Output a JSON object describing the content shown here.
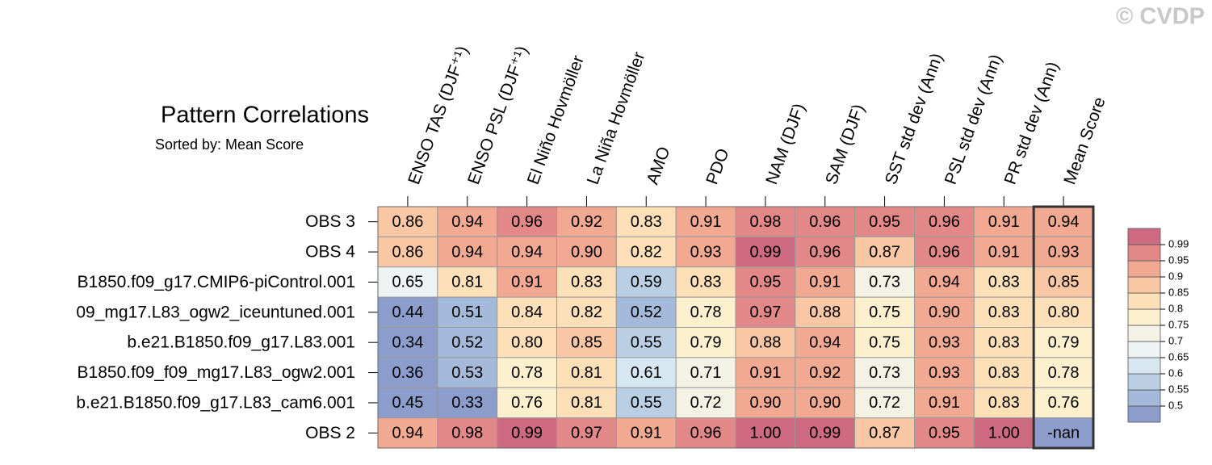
{
  "chart_data": {
    "type": "heatmap",
    "title": "Pattern Correlations",
    "subtitle": "Sorted by: Mean Score",
    "watermark": "© CVDP",
    "columns": [
      "ENSO TAS (DJF⁺¹)",
      "ENSO PSL (DJF⁺¹)",
      "El Niño Hovmöller",
      "La Niña Hovmöller",
      "AMO",
      "PDO",
      "NAM (DJF)",
      "SAM (DJF)",
      "SST std dev (Ann)",
      "PSL std dev (Ann)",
      "PR std dev (Ann)",
      "Mean Score"
    ],
    "rows": [
      "OBS 3",
      "OBS 4",
      "B1850.f09_g17.CMIP6-piControl.001",
      "09_mg17.L83_ogw2_iceuntuned.001",
      "b.e21.B1850.f09_g17.L83.001",
      "B1850.f09_f09_mg17.L83_ogw2.001",
      "b.e21.B1850.f09_g17.L83_cam6.001",
      "OBS 2"
    ],
    "values": [
      [
        0.86,
        0.94,
        0.96,
        0.92,
        0.83,
        0.91,
        0.98,
        0.96,
        0.95,
        0.96,
        0.91,
        0.94
      ],
      [
        0.86,
        0.94,
        0.94,
        0.9,
        0.82,
        0.93,
        0.99,
        0.96,
        0.87,
        0.96,
        0.91,
        0.93
      ],
      [
        0.65,
        0.81,
        0.91,
        0.83,
        0.59,
        0.83,
        0.95,
        0.91,
        0.73,
        0.94,
        0.83,
        0.85
      ],
      [
        0.44,
        0.51,
        0.84,
        0.82,
        0.52,
        0.78,
        0.97,
        0.88,
        0.75,
        0.9,
        0.83,
        0.8
      ],
      [
        0.34,
        0.52,
        0.8,
        0.85,
        0.55,
        0.79,
        0.88,
        0.94,
        0.75,
        0.93,
        0.83,
        0.79
      ],
      [
        0.36,
        0.53,
        0.78,
        0.81,
        0.61,
        0.71,
        0.91,
        0.92,
        0.73,
        0.93,
        0.83,
        0.78
      ],
      [
        0.45,
        0.33,
        0.76,
        0.81,
        0.55,
        0.72,
        0.9,
        0.9,
        0.72,
        0.91,
        0.83,
        0.76
      ],
      [
        0.94,
        0.98,
        0.99,
        0.97,
        0.91,
        0.96,
        1.0,
        0.99,
        0.87,
        0.95,
        1.0,
        null
      ]
    ],
    "value_labels": [
      [
        "0.86",
        "0.94",
        "0.96",
        "0.92",
        "0.83",
        "0.91",
        "0.98",
        "0.96",
        "0.95",
        "0.96",
        "0.91",
        "0.94"
      ],
      [
        "0.86",
        "0.94",
        "0.94",
        "0.90",
        "0.82",
        "0.93",
        "0.99",
        "0.96",
        "0.87",
        "0.96",
        "0.91",
        "0.93"
      ],
      [
        "0.65",
        "0.81",
        "0.91",
        "0.83",
        "0.59",
        "0.83",
        "0.95",
        "0.91",
        "0.73",
        "0.94",
        "0.83",
        "0.85"
      ],
      [
        "0.44",
        "0.51",
        "0.84",
        "0.82",
        "0.52",
        "0.78",
        "0.97",
        "0.88",
        "0.75",
        "0.90",
        "0.83",
        "0.80"
      ],
      [
        "0.34",
        "0.52",
        "0.80",
        "0.85",
        "0.55",
        "0.79",
        "0.88",
        "0.94",
        "0.75",
        "0.93",
        "0.83",
        "0.79"
      ],
      [
        "0.36",
        "0.53",
        "0.78",
        "0.81",
        "0.61",
        "0.71",
        "0.91",
        "0.92",
        "0.73",
        "0.93",
        "0.83",
        "0.78"
      ],
      [
        "0.45",
        "0.33",
        "0.76",
        "0.81",
        "0.55",
        "0.72",
        "0.90",
        "0.90",
        "0.72",
        "0.91",
        "0.83",
        "0.76"
      ],
      [
        "0.94",
        "0.98",
        "0.99",
        "0.97",
        "0.91",
        "0.96",
        "1.00",
        "0.99",
        "0.87",
        "0.95",
        "1.00",
        "-nan"
      ]
    ],
    "levels": [
      0.5,
      0.55,
      0.6,
      0.65,
      0.7,
      0.75,
      0.8,
      0.85,
      0.9,
      0.95,
      0.99
    ],
    "colors": [
      "#8d9dcb",
      "#a5b9da",
      "#bbcfe4",
      "#d6e7f1",
      "#ecf3f2",
      "#f3f2e4",
      "#fdf0cf",
      "#fde0b8",
      "#f9c7a3",
      "#f2a992",
      "#e38889",
      "#cd6a81"
    ],
    "missing_color": "#8d9dcb"
  }
}
